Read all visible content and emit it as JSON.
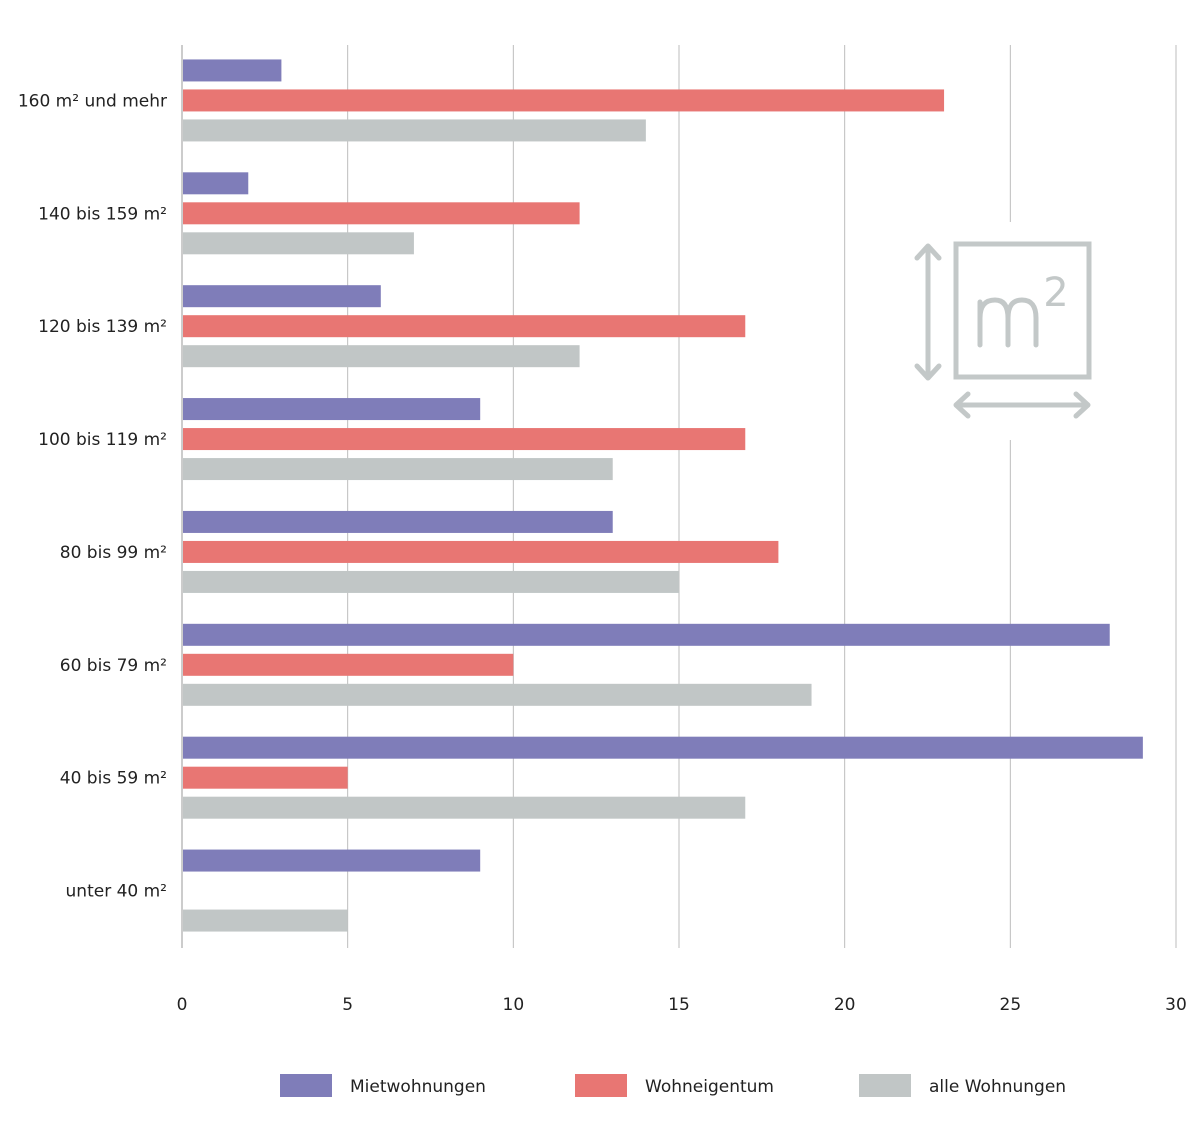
{
  "chart_data": {
    "type": "bar",
    "orientation": "horizontal",
    "categories": [
      "160 m² und mehr",
      "140 bis 159 m²",
      "120 bis 139 m²",
      "100 bis 119 m²",
      "80 bis 99 m²",
      "60 bis 79 m²",
      "40 bis 59 m²",
      "unter 40 m²"
    ],
    "series": [
      {
        "name": "Mietwohnungen",
        "color": "#7f7db9",
        "values": [
          3,
          2,
          6,
          9,
          13,
          28,
          29,
          9
        ]
      },
      {
        "name": "Wohneigentum",
        "color": "#e87673",
        "values": [
          23,
          12,
          17,
          17,
          18,
          10,
          5,
          0
        ]
      },
      {
        "name": "alle Wohnungen",
        "color": "#c1c6c6",
        "values": [
          14,
          7,
          12,
          13,
          15,
          19,
          17,
          5
        ]
      }
    ],
    "xlim": [
      0,
      30
    ],
    "xticks": [
      "0",
      "5",
      "10",
      "15",
      "20",
      "25",
      "30"
    ],
    "grid": true,
    "legend_position": "bottom",
    "icon_text": "m²"
  }
}
